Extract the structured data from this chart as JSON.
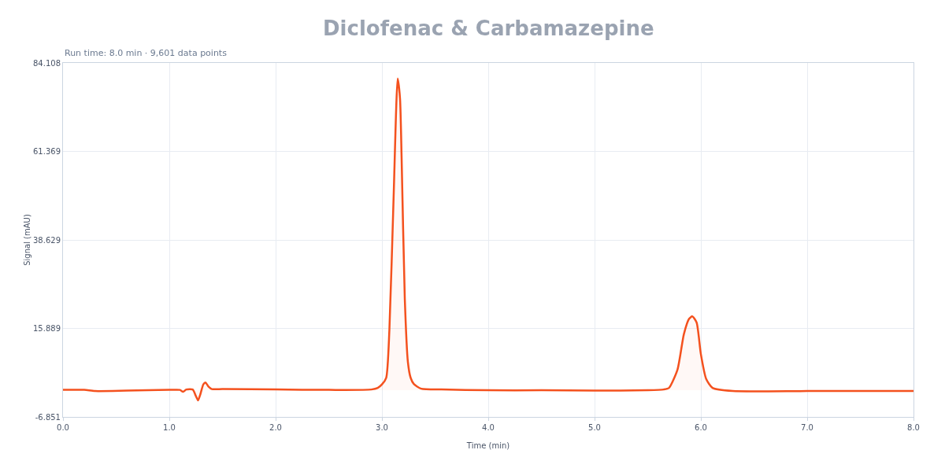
{
  "chart_data": {
    "type": "area",
    "title": "Diclofenac & Carbamazepine",
    "subtitle": "Run time: 8.0 min · 9,601 data points",
    "xlabel": "Time (min)",
    "ylabel": "Signal (mAU)",
    "x": [
      0,
      0.2,
      0.3,
      0.6,
      1.0,
      1.1,
      1.13,
      1.16,
      1.22,
      1.25,
      1.27,
      1.29,
      1.32,
      1.34,
      1.37,
      1.4,
      1.5,
      2.0,
      2.5,
      2.9,
      2.96,
      3.0,
      3.04,
      3.07,
      3.11,
      3.148,
      3.17,
      3.185,
      3.215,
      3.244,
      3.27,
      3.3,
      3.37,
      3.56,
      4.0,
      4.5,
      5.0,
      5.5,
      5.65,
      5.7,
      5.78,
      5.84,
      5.89,
      5.92,
      5.96,
      6.0,
      6.05,
      6.11,
      6.3,
      7.0,
      8.0
    ],
    "series": [
      {
        "color": "#f4511e",
        "values": [
          0.1,
          0.1,
          -0.2,
          -0.1,
          0.1,
          0.1,
          -0.4,
          0.2,
          0.2,
          -1.5,
          -2.6,
          -1.2,
          1.5,
          2.0,
          0.9,
          0.3,
          0.3,
          0.2,
          0.1,
          0.2,
          0.6,
          1.5,
          3.2,
          15.4,
          49.8,
          80.1,
          75,
          59.8,
          23.5,
          7.3,
          3.2,
          1.6,
          0.4,
          0.2,
          0,
          0,
          -0.1,
          0,
          0.2,
          0.6,
          5.3,
          14.4,
          18.4,
          19.0,
          17.4,
          9.3,
          2.9,
          0.6,
          -0.2,
          -0.2,
          -0.2
        ]
      }
    ],
    "xlim": [
      0,
      8
    ],
    "xticks": [
      {
        "value": 0,
        "label": "0.0"
      },
      {
        "value": 1,
        "label": "1.0"
      },
      {
        "value": 2,
        "label": "2.0"
      },
      {
        "value": 3,
        "label": "3.0"
      },
      {
        "value": 4,
        "label": "4.0"
      },
      {
        "value": 5,
        "label": "5.0"
      },
      {
        "value": 6,
        "label": "6.0"
      },
      {
        "value": 7,
        "label": "7.0"
      },
      {
        "value": 8,
        "label": "8.0"
      }
    ],
    "ylim": [
      -6.851,
      84.108
    ],
    "yticks": [
      -6.851,
      15.889,
      38.629,
      61.369,
      84.108
    ],
    "grid": true
  }
}
